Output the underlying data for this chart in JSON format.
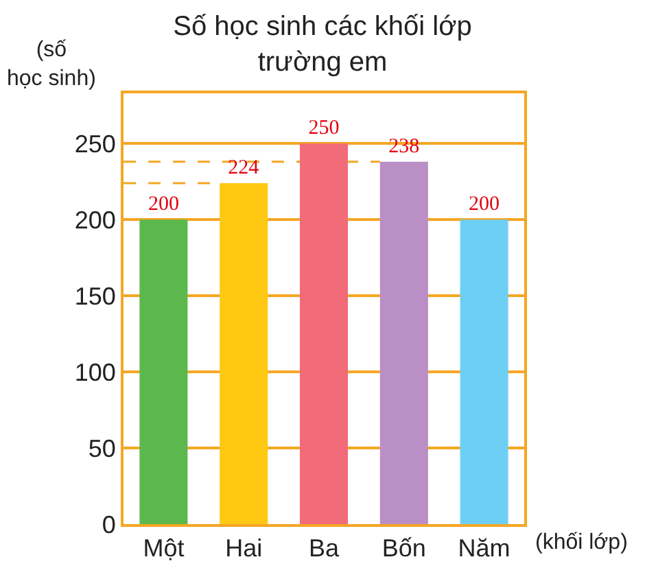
{
  "chart_data": {
    "type": "bar",
    "title": "Số học sinh các khối lớp\ntrường em",
    "ylabel": "(số\nhọc sinh)",
    "xlabel": "(khối lớp)",
    "categories": [
      "Một",
      "Hai",
      "Ba",
      "Bốn",
      "Năm"
    ],
    "values": [
      200,
      224,
      250,
      238,
      200
    ],
    "colors": [
      "#5cb84c",
      "#ffc812",
      "#f26b78",
      "#b98fc5",
      "#6ecff5"
    ],
    "data_labels": true,
    "ylim": [
      0,
      283
    ],
    "yticks": [
      0,
      50,
      100,
      150,
      200,
      250
    ],
    "grid": "y",
    "ref_lines": [
      {
        "axis": "y",
        "value": 224,
        "color": "#f5a623",
        "line_style": "dashed"
      },
      {
        "axis": "y",
        "value": 238,
        "color": "#f5a623",
        "line_style": "dashed"
      }
    ]
  }
}
